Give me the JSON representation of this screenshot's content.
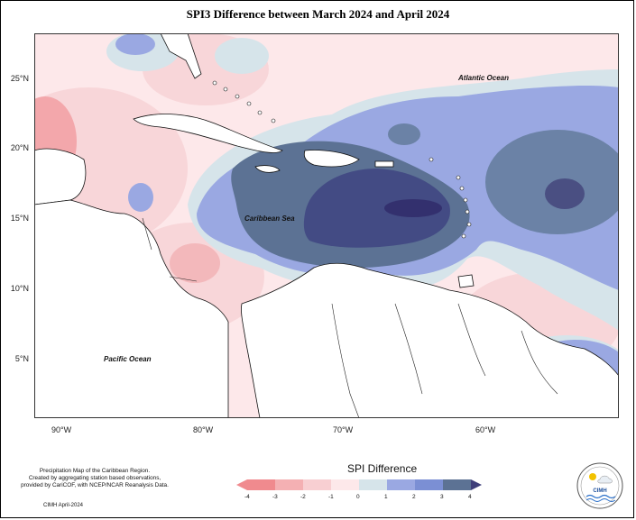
{
  "title": "SPI3 Difference between March 2024 and April 2024",
  "axes": {
    "lat_labels": [
      "25°N",
      "20°N",
      "15°N",
      "10°N",
      "5°N"
    ],
    "lon_labels": [
      "90°W",
      "80°W",
      "70°W",
      "60°W"
    ]
  },
  "labels": {
    "atlantic": "Atlantic Ocean",
    "caribbean": "Caribbean Sea",
    "pacific": "Pacific Ocean"
  },
  "legend": {
    "title": "SPI Difference",
    "ticks": [
      "-4",
      "-3",
      "-2",
      "-1",
      "0",
      "1",
      "2",
      "3",
      "4"
    ],
    "colors": [
      "#f08a8e",
      "#f4b0b3",
      "#f8cfd2",
      "#fde8ea",
      "#d6e4ea",
      "#9aa8e2",
      "#7b8fd4",
      "#5c7294",
      "#3e3f7a"
    ]
  },
  "credit": {
    "line1": "Precipitation Map of the Caribbean Region.",
    "line2": "Created by aggregating station based observations,",
    "line3": "provided by CariCOF, with NCEP/NCAR Reanalysis Data."
  },
  "date": "CIMH April-2024",
  "logo_text": "CIMH"
}
